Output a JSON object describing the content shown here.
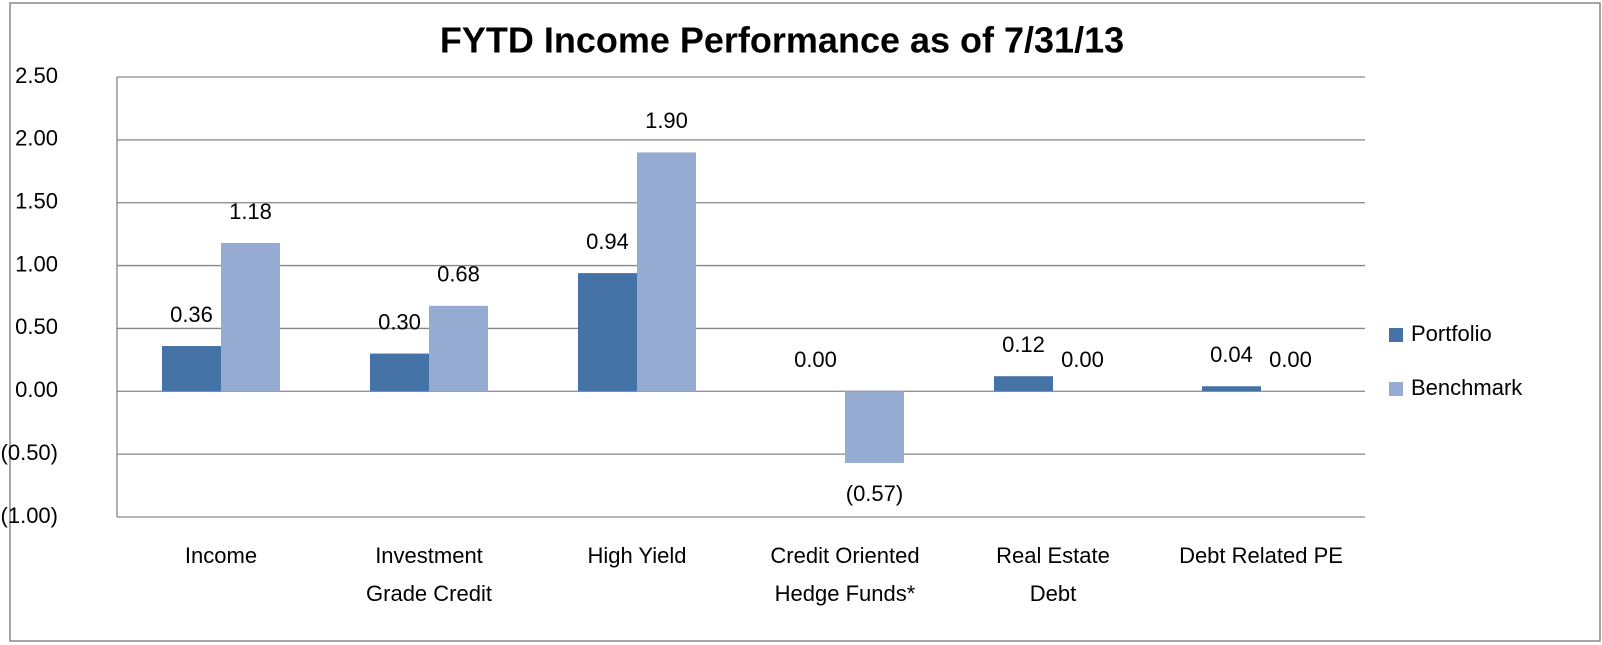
{
  "chart_data": {
    "type": "bar",
    "title": "FYTD Income Performance as of 7/31/13",
    "categories": [
      "Income",
      "Investment\nGrade Credit",
      "High Yield",
      "Credit Oriented\nHedge Funds*",
      "Real Estate\nDebt",
      "Debt Related PE"
    ],
    "series": [
      {
        "name": "Portfolio",
        "color": "#4572a7",
        "values": [
          0.36,
          0.3,
          0.94,
          0.0,
          0.12,
          0.04
        ],
        "value_labels": [
          "0.36",
          "0.30",
          "0.94",
          "0.00",
          "0.12",
          "0.04"
        ]
      },
      {
        "name": "Benchmark",
        "color": "#95abd2",
        "values": [
          1.18,
          0.68,
          1.9,
          -0.57,
          0.0,
          0.0
        ],
        "value_labels": [
          "1.18",
          "0.68",
          "1.90",
          "(0.57)",
          "0.00",
          "0.00"
        ]
      }
    ],
    "ylim": [
      -1.0,
      2.5
    ],
    "yticks": [
      {
        "value": -1.0,
        "label": "(1.00)"
      },
      {
        "value": -0.5,
        "label": "(0.50)"
      },
      {
        "value": 0,
        "label": "0.00"
      },
      {
        "value": 0.5,
        "label": "0.50"
      },
      {
        "value": 1.0,
        "label": "1.00"
      },
      {
        "value": 1.5,
        "label": "1.50"
      },
      {
        "value": 2.0,
        "label": "2.00"
      },
      {
        "value": 2.5,
        "label": "2.50"
      }
    ],
    "grid": true,
    "legend": "right"
  }
}
